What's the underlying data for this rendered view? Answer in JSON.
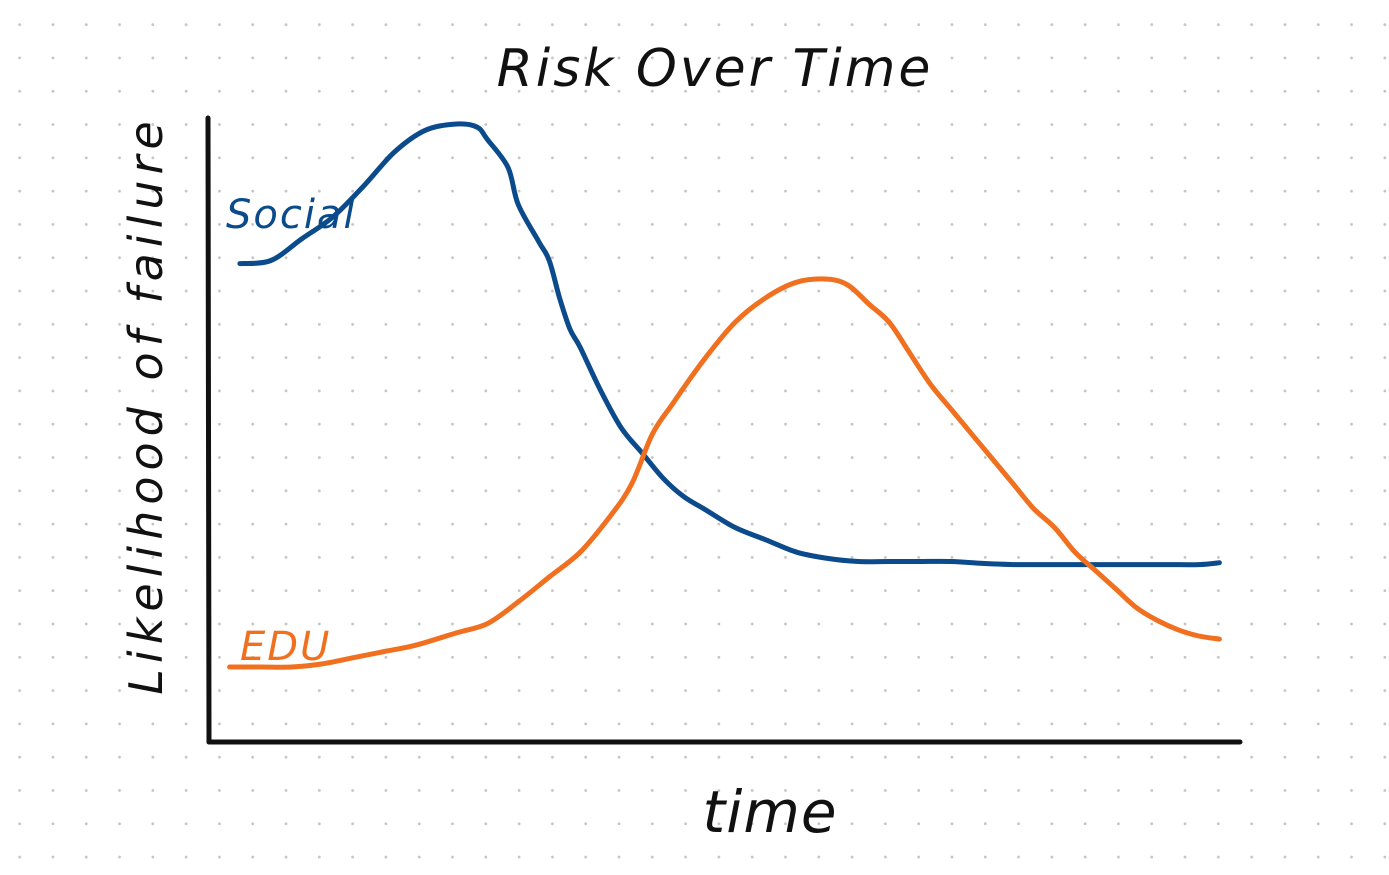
{
  "chart_data": {
    "type": "line",
    "title": "Risk Over Time",
    "xlabel": "time",
    "ylabel": "Likelihood of failure",
    "xlim": [
      0,
      100
    ],
    "ylim": [
      0,
      100
    ],
    "grid": false,
    "legend": "inline labels",
    "series": [
      {
        "name": "Social",
        "color": "#0b4a8b",
        "x": [
          3,
          6,
          9,
          12,
          15,
          18,
          21,
          24,
          26,
          27,
          29,
          30,
          32,
          33,
          34,
          35,
          36,
          38,
          40,
          42,
          44,
          46,
          48,
          51,
          54,
          57,
          60,
          63,
          66,
          69,
          72,
          75,
          78,
          81,
          84,
          87,
          90,
          93,
          96,
          98
        ],
        "y": [
          77.5,
          78,
          81.5,
          85,
          90,
          95.5,
          99,
          100,
          99.5,
          97.5,
          93,
          87,
          81,
          78,
          72,
          67,
          64,
          57,
          51,
          47,
          43,
          40,
          38,
          35,
          33,
          31,
          30,
          29.5,
          29.5,
          29.5,
          29.5,
          29.2,
          29,
          29,
          29,
          29,
          29,
          29,
          29,
          29.3
        ]
      },
      {
        "name": "EDU",
        "color": "#f07020",
        "x": [
          2,
          5,
          8,
          11,
          14,
          17,
          20,
          24,
          27,
          30,
          33,
          36,
          39,
          41,
          43,
          45,
          48,
          51,
          54,
          57,
          60,
          62,
          64,
          66,
          68,
          70,
          72,
          74,
          76,
          78,
          80,
          82,
          84,
          86,
          88,
          90,
          92,
          94,
          96,
          98
        ],
        "y": [
          12.5,
          12.5,
          12.5,
          13,
          14,
          15,
          16,
          18,
          19.5,
          23,
          27,
          31,
          37,
          42,
          50,
          55,
          62,
          68,
          72,
          74.5,
          75,
          74,
          71,
          68,
          63,
          58,
          54,
          50,
          46,
          42,
          38,
          35,
          31,
          28,
          25,
          22,
          20,
          18.5,
          17.5,
          17
        ]
      }
    ]
  }
}
